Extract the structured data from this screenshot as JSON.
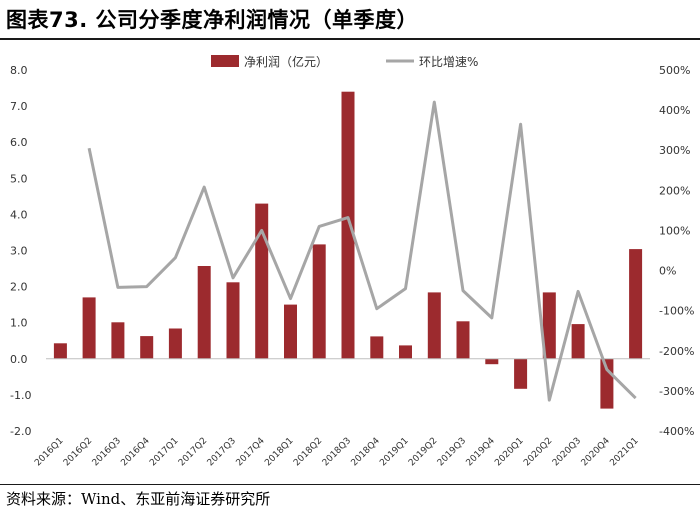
{
  "header": {
    "title": "图表73. 公司分季度净利润情况（单季度）"
  },
  "footer": {
    "source": "资料来源：Wind、东亚前海证券研究所"
  },
  "chart_data": {
    "type": "bar",
    "categories": [
      "2016Q1",
      "2016Q2",
      "2016Q3",
      "2016Q4",
      "2017Q1",
      "2017Q2",
      "2017Q3",
      "2017Q4",
      "2018Q1",
      "2018Q2",
      "2018Q3",
      "2018Q4",
      "2019Q1",
      "2019Q2",
      "2019Q3",
      "2019Q4",
      "2020Q1",
      "2020Q2",
      "2020Q3",
      "2020Q4",
      "2021Q1"
    ],
    "series": [
      {
        "name": "净利润（亿元）",
        "type": "bar",
        "axis": "left",
        "color": "#9c2a2e",
        "values": [
          0.43,
          1.7,
          1.01,
          0.63,
          0.84,
          2.57,
          2.12,
          4.3,
          1.5,
          3.17,
          7.4,
          0.62,
          0.37,
          1.84,
          1.04,
          -0.15,
          -0.83,
          1.84,
          0.96,
          -1.38,
          3.04
        ]
      },
      {
        "name": "环比增速%",
        "type": "line",
        "axis": "right",
        "color": "#a6a6a6",
        "values": [
          null,
          305,
          -42,
          -40,
          32,
          208,
          -18,
          100,
          -70,
          110,
          132,
          -95,
          -45,
          420,
          -50,
          -118,
          365,
          -323,
          -52,
          -247,
          -318
        ]
      }
    ],
    "y_left": {
      "min": -2.0,
      "max": 8.0,
      "step": 1.0,
      "ticks": [
        "8.0",
        "7.0",
        "6.0",
        "5.0",
        "4.0",
        "3.0",
        "2.0",
        "1.0",
        "0.0",
        "-1.0",
        "-2.0"
      ]
    },
    "y_right": {
      "min": -400,
      "max": 500,
      "step": 100,
      "ticks": [
        "500%",
        "400%",
        "300%",
        "200%",
        "100%",
        "0%",
        "-100%",
        "-200%",
        "-300%",
        "-400%"
      ]
    },
    "legend_position": "top-center",
    "grid": false
  }
}
